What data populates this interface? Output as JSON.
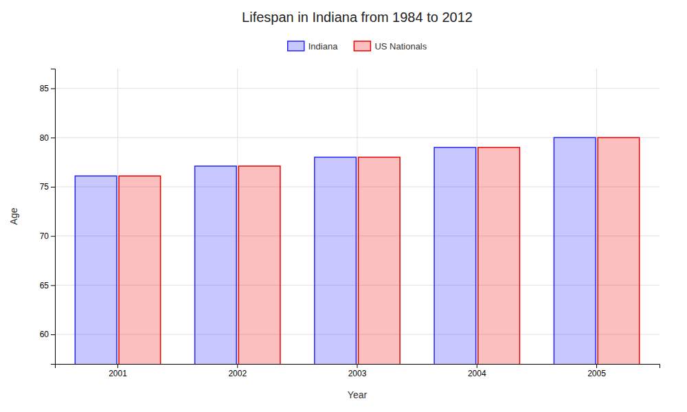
{
  "chart_data": {
    "type": "bar",
    "title": "Lifespan in Indiana from 1984 to 2012",
    "xlabel": "Year",
    "ylabel": "Age",
    "categories": [
      "2001",
      "2002",
      "2003",
      "2004",
      "2005"
    ],
    "series": [
      {
        "name": "Indiana",
        "color": "#2222ff",
        "values": [
          76.1,
          77.1,
          78.0,
          79.0,
          80.0
        ]
      },
      {
        "name": "US Nationals",
        "color": "#ee0000",
        "values": [
          76.1,
          77.1,
          78.0,
          79.0,
          80.0
        ]
      }
    ],
    "ylim": [
      57,
      87
    ],
    "yticks": [
      60,
      65,
      70,
      75,
      80,
      85
    ],
    "grid": true,
    "legend": "top"
  }
}
